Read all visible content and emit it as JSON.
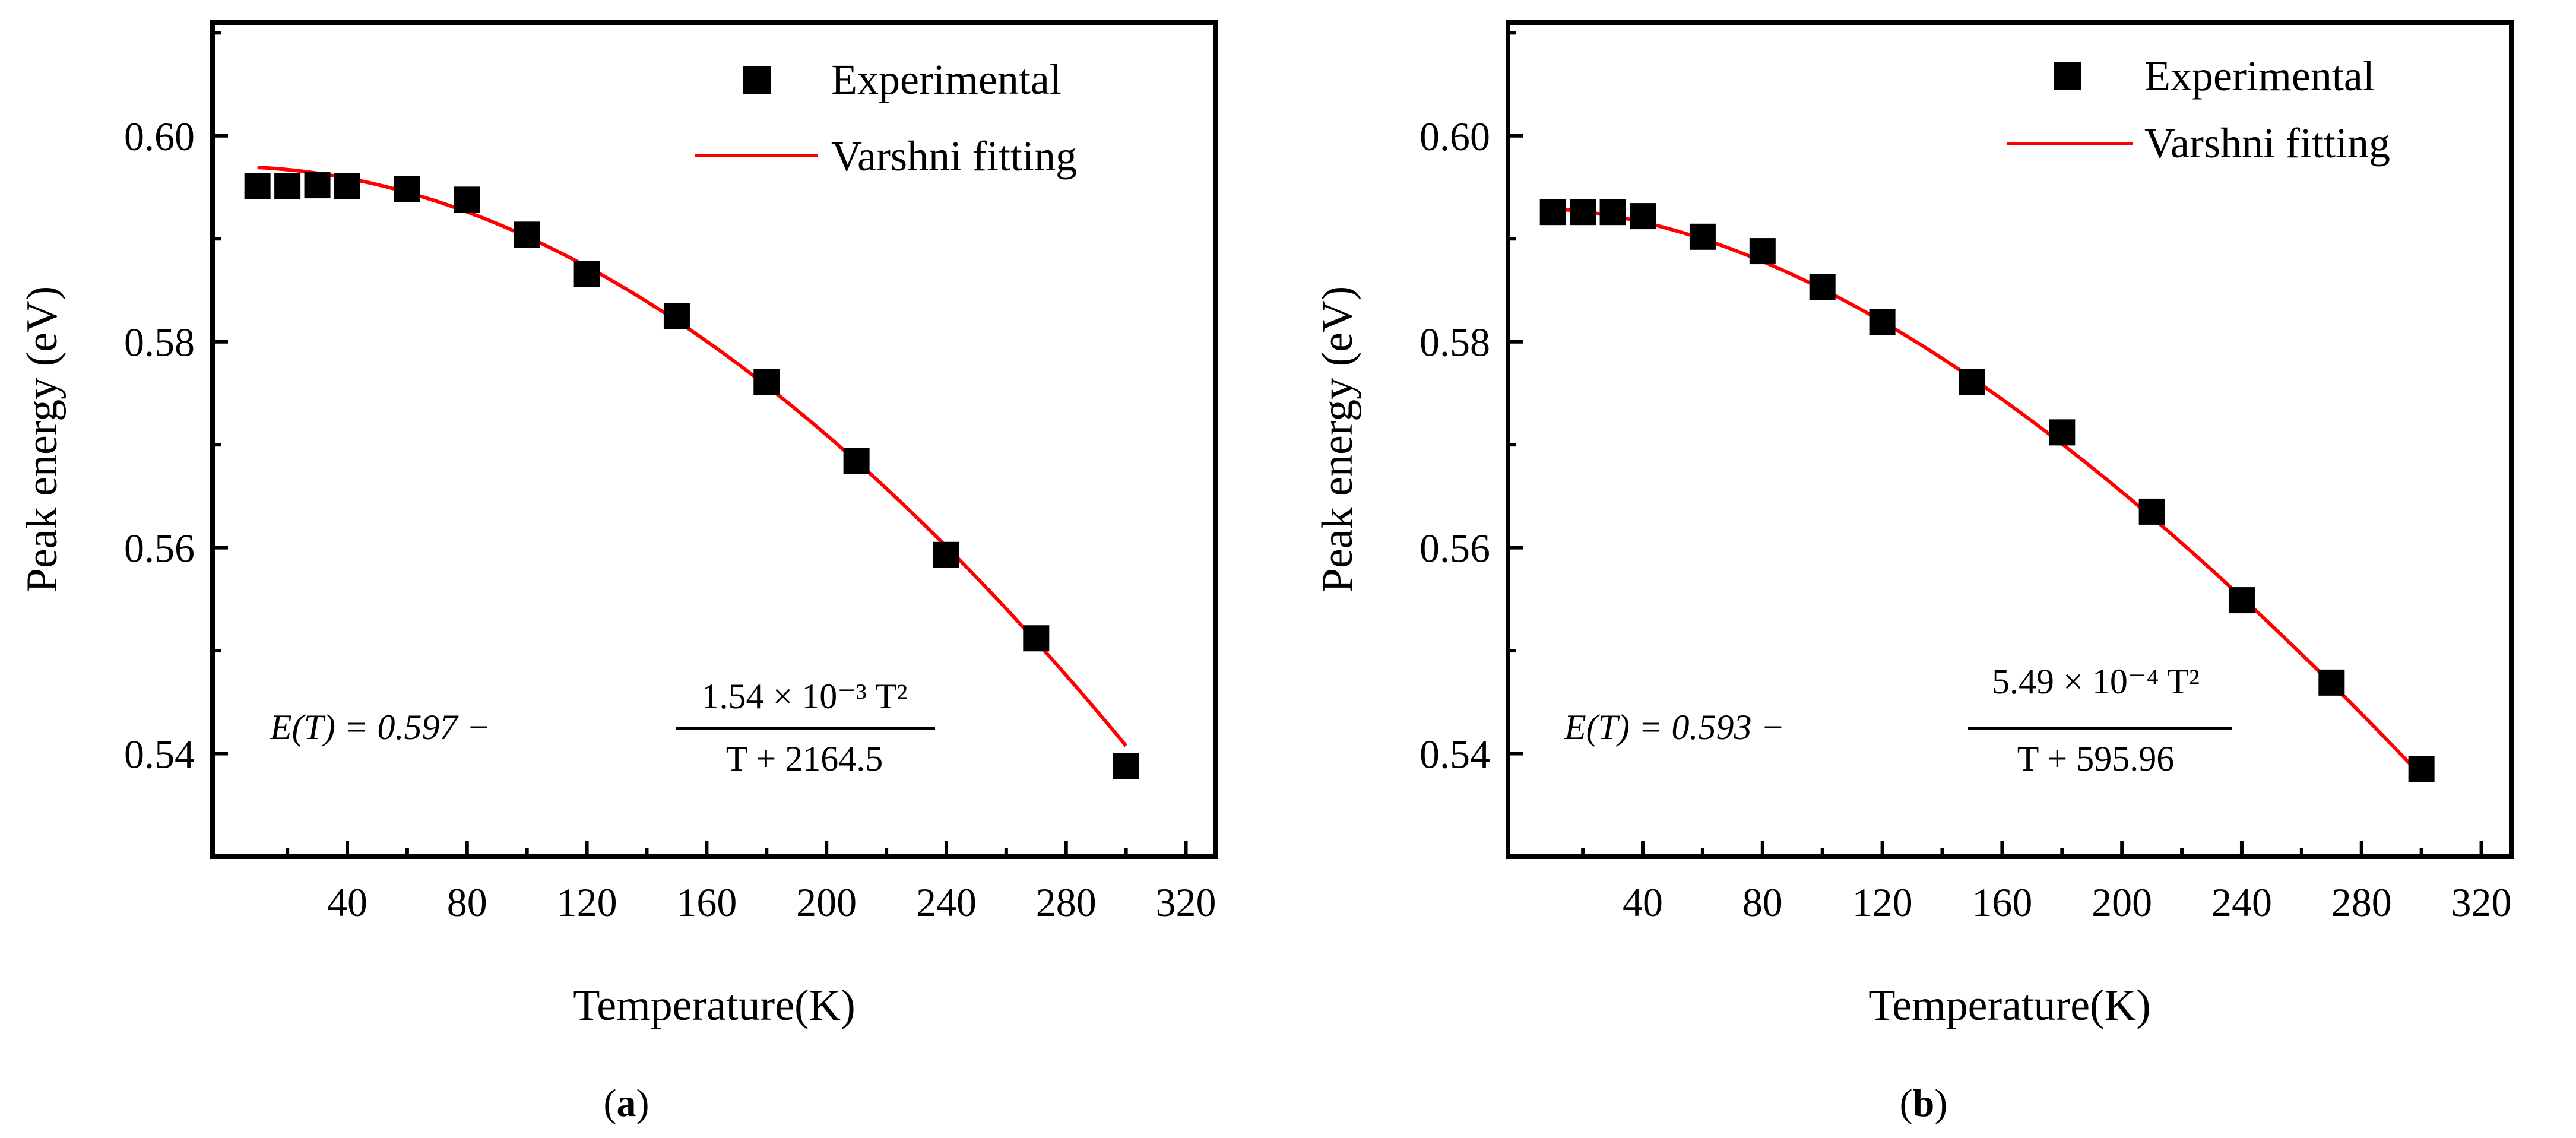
{
  "colors": {
    "fit": "#ff0000",
    "marker": "#000000",
    "axis": "#000000"
  },
  "chart_data": [
    {
      "type": "scatter",
      "panel": "a",
      "caption": "(a)",
      "caption_open": "(",
      "caption_letter": "a",
      "caption_close": ")",
      "xlabel": "Temperature(K)",
      "ylabel": "Peak energy (eV)",
      "xlim": [
        -5,
        330
      ],
      "ylim": [
        0.53,
        0.611
      ],
      "xticks": [
        40,
        80,
        120,
        160,
        200,
        240,
        280,
        320
      ],
      "xtick_labels": [
        "40",
        "80",
        "120",
        "160",
        "200",
        "240",
        "280",
        "320"
      ],
      "yticks": [
        0.54,
        0.56,
        0.58,
        0.6
      ],
      "ytick_labels": [
        "0.54",
        "0.56",
        "0.58",
        "0.60"
      ],
      "legend_placement": "top-right",
      "equation": {
        "lhs": "E(T) = 0.597 −",
        "numerator": "1.54 × 10⁻³ T²",
        "denominator": "T + 2164.5"
      },
      "series": [
        {
          "name": "Experimental",
          "kind": "scatter",
          "marker": "square",
          "x": [
            10,
            20,
            30,
            40,
            60,
            80,
            100,
            120,
            150,
            180,
            210,
            240,
            270,
            300
          ],
          "y": [
            0.5951,
            0.5951,
            0.5952,
            0.5951,
            0.5948,
            0.5938,
            0.5904,
            0.5866,
            0.5825,
            0.5761,
            0.5684,
            0.5593,
            0.5512,
            0.5388
          ]
        },
        {
          "name": "Varshni fitting",
          "kind": "line",
          "E0": 0.597,
          "alpha": 0.00154,
          "beta": 2164.5,
          "x_range": [
            10,
            300
          ]
        }
      ]
    },
    {
      "type": "scatter",
      "panel": "b",
      "caption": "(b)",
      "caption_open": "(",
      "caption_letter": "b",
      "caption_close": ")",
      "xlabel": "Temperature(K)",
      "ylabel": "Peak energy (eV)",
      "xlim": [
        -5,
        330
      ],
      "ylim": [
        0.53,
        0.611
      ],
      "xticks": [
        40,
        80,
        120,
        160,
        200,
        240,
        280,
        320
      ],
      "xtick_labels": [
        "40",
        "80",
        "120",
        "160",
        "200",
        "240",
        "280",
        "320"
      ],
      "yticks": [
        0.54,
        0.56,
        0.58,
        0.6
      ],
      "ytick_labels": [
        "0.54",
        "0.56",
        "0.58",
        "0.60"
      ],
      "legend_placement": "top-right",
      "equation": {
        "lhs": "E(T) = 0.593 −",
        "numerator": "5.49 × 10⁻⁴ T²",
        "denominator": "T + 595.96"
      },
      "series": [
        {
          "name": "Experimental",
          "kind": "scatter",
          "marker": "square",
          "x": [
            10,
            20,
            30,
            40,
            60,
            80,
            100,
            120,
            150,
            180,
            210,
            240,
            270,
            300
          ],
          "y": [
            0.5926,
            0.5926,
            0.5926,
            0.5922,
            0.5902,
            0.5888,
            0.5853,
            0.5819,
            0.5761,
            0.5712,
            0.5635,
            0.5549,
            0.5469,
            0.5385
          ]
        },
        {
          "name": "Varshni fitting",
          "kind": "line",
          "E0": 0.593,
          "alpha": 0.000549,
          "beta": 595.96,
          "x_range": [
            10,
            300
          ]
        }
      ]
    }
  ]
}
